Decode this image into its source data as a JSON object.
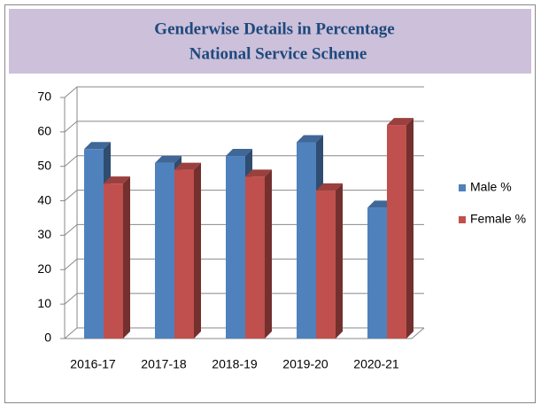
{
  "chart_data": {
    "type": "bar3d",
    "title": "Genderwise Details in Percentage",
    "subtitle": "National Service Scheme",
    "categories": [
      "2016-17",
      "2017-18",
      "2018-19",
      "2019-20",
      "2020-21"
    ],
    "series": [
      {
        "name": "Male %",
        "color": "#4f81bd",
        "values": [
          55,
          51,
          53,
          57,
          38
        ]
      },
      {
        "name": "Female %",
        "color": "#c0504d",
        "values": [
          45,
          49,
          47,
          43,
          62
        ]
      }
    ],
    "ylim": [
      0,
      70
    ],
    "yticks": [
      0,
      10,
      20,
      30,
      40,
      50,
      60,
      70
    ],
    "grid": true,
    "legend": "right"
  }
}
